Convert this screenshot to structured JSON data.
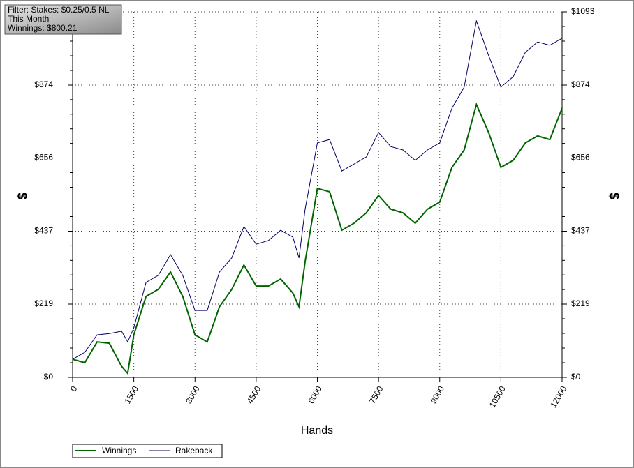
{
  "filter": [
    "Filter: Stakes: $0.25/0.5 NL",
    "This Month",
    "Winnings: $800.21"
  ],
  "chart_data": {
    "type": "line",
    "x_label": "Hands",
    "y_label": "$",
    "grid": true,
    "xlim": [
      0,
      12000
    ],
    "xticks": [
      0,
      1500,
      3000,
      4500,
      6000,
      7500,
      9000,
      10500,
      12000
    ],
    "ylim": [
      0,
      1093
    ],
    "yticks": [
      {
        "value": 0,
        "label": "$0"
      },
      {
        "value": 219,
        "label": "$219"
      },
      {
        "value": 437,
        "label": "$437"
      },
      {
        "value": 656,
        "label": "$656"
      },
      {
        "value": 874,
        "label": "$874"
      },
      {
        "value": 1093,
        "label": "$1093"
      }
    ],
    "x": [
      0,
      300,
      600,
      900,
      1200,
      1350,
      1500,
      1800,
      2100,
      2400,
      2700,
      3000,
      3300,
      3600,
      3900,
      4200,
      4500,
      4800,
      5100,
      5400,
      5550,
      5700,
      6000,
      6300,
      6600,
      6900,
      7200,
      7500,
      7800,
      8100,
      8400,
      8700,
      9000,
      9300,
      9600,
      9900,
      10200,
      10500,
      10800,
      11100,
      11400,
      11700,
      12000
    ],
    "series": [
      {
        "name": "Winnings",
        "color": "#006400",
        "values": [
          54,
          44,
          106,
          102,
          33,
          12,
          127,
          242,
          263,
          315,
          242,
          127,
          106,
          211,
          263,
          336,
          273,
          273,
          294,
          252,
          211,
          346,
          565,
          555,
          440,
          461,
          492,
          544,
          503,
          492,
          461,
          503,
          524,
          628,
          680,
          816,
          732,
          628,
          649,
          701,
          722,
          711,
          805
        ]
      },
      {
        "name": "Rakeback",
        "color": "#000066",
        "values": [
          54,
          75,
          127,
          131,
          138,
          106,
          148,
          284,
          305,
          367,
          305,
          200,
          200,
          315,
          357,
          451,
          398,
          409,
          440,
          419,
          357,
          503,
          701,
          711,
          617,
          638,
          659,
          732,
          690,
          680,
          649,
          680,
          701,
          805,
          868,
          1066,
          962,
          868,
          899,
          972,
          1003,
          993,
          1014
        ]
      }
    ]
  }
}
